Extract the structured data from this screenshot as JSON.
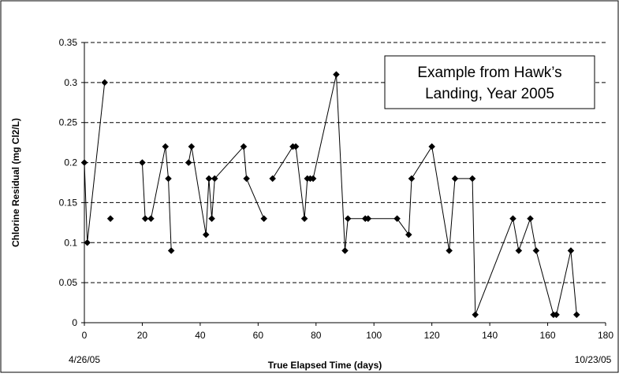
{
  "chart_data": {
    "type": "line",
    "title": "",
    "xlabel": "True Elapsed Time (days)",
    "ylabel": "Chlorine Residual (mg Cl2/L)",
    "xlim": [
      0,
      180
    ],
    "ylim": [
      0,
      0.35
    ],
    "x_ticks": [
      0,
      20,
      40,
      60,
      80,
      100,
      120,
      140,
      160,
      180
    ],
    "y_ticks": [
      0,
      0.05,
      0.1,
      0.15,
      0.2,
      0.25,
      0.3,
      0.35
    ],
    "x_tick_labels": [
      "0",
      "20",
      "40",
      "60",
      "80",
      "100",
      "120",
      "140",
      "160",
      "180"
    ],
    "y_tick_labels": [
      "0",
      "0.05",
      "0.1",
      "0.15",
      "0.2",
      "0.25",
      "0.3",
      "0.35"
    ],
    "grid": "horizontal dashed",
    "start_date": "4/26/05",
    "end_date": "10/23/05",
    "annotation": [
      "Example from Hawk’s",
      "Landing, Year 2005"
    ],
    "marker": "diamond",
    "line_color": "#000000",
    "segments": [
      [
        [
          0,
          0.2
        ],
        [
          1,
          0.1
        ],
        [
          7,
          0.3
        ]
      ],
      [
        [
          9,
          0.13
        ]
      ],
      [
        [
          20,
          0.2
        ],
        [
          21,
          0.13
        ],
        [
          23,
          0.13
        ],
        [
          28,
          0.22
        ],
        [
          29,
          0.18
        ],
        [
          30,
          0.09
        ]
      ],
      [
        [
          36,
          0.2
        ],
        [
          37,
          0.22
        ],
        [
          42,
          0.11
        ],
        [
          43,
          0.18
        ],
        [
          44,
          0.13
        ],
        [
          45,
          0.18
        ],
        [
          55,
          0.22
        ],
        [
          56,
          0.18
        ],
        [
          62,
          0.13
        ]
      ],
      [
        [
          65,
          0.18
        ],
        [
          72,
          0.22
        ],
        [
          73,
          0.22
        ],
        [
          76,
          0.13
        ],
        [
          77,
          0.18
        ],
        [
          78,
          0.18
        ],
        [
          79,
          0.18
        ],
        [
          87,
          0.31
        ],
        [
          90,
          0.09
        ],
        [
          91,
          0.13
        ],
        [
          97,
          0.13
        ],
        [
          98,
          0.13
        ],
        [
          108,
          0.13
        ],
        [
          112,
          0.11
        ],
        [
          113,
          0.18
        ],
        [
          120,
          0.22
        ],
        [
          126,
          0.09
        ],
        [
          128,
          0.18
        ],
        [
          134,
          0.18
        ],
        [
          135,
          0.01
        ],
        [
          148,
          0.13
        ],
        [
          150,
          0.09
        ],
        [
          154,
          0.13
        ],
        [
          156,
          0.09
        ],
        [
          162,
          0.01
        ],
        [
          163,
          0.01
        ],
        [
          168,
          0.09
        ],
        [
          170,
          0.01
        ]
      ]
    ]
  }
}
